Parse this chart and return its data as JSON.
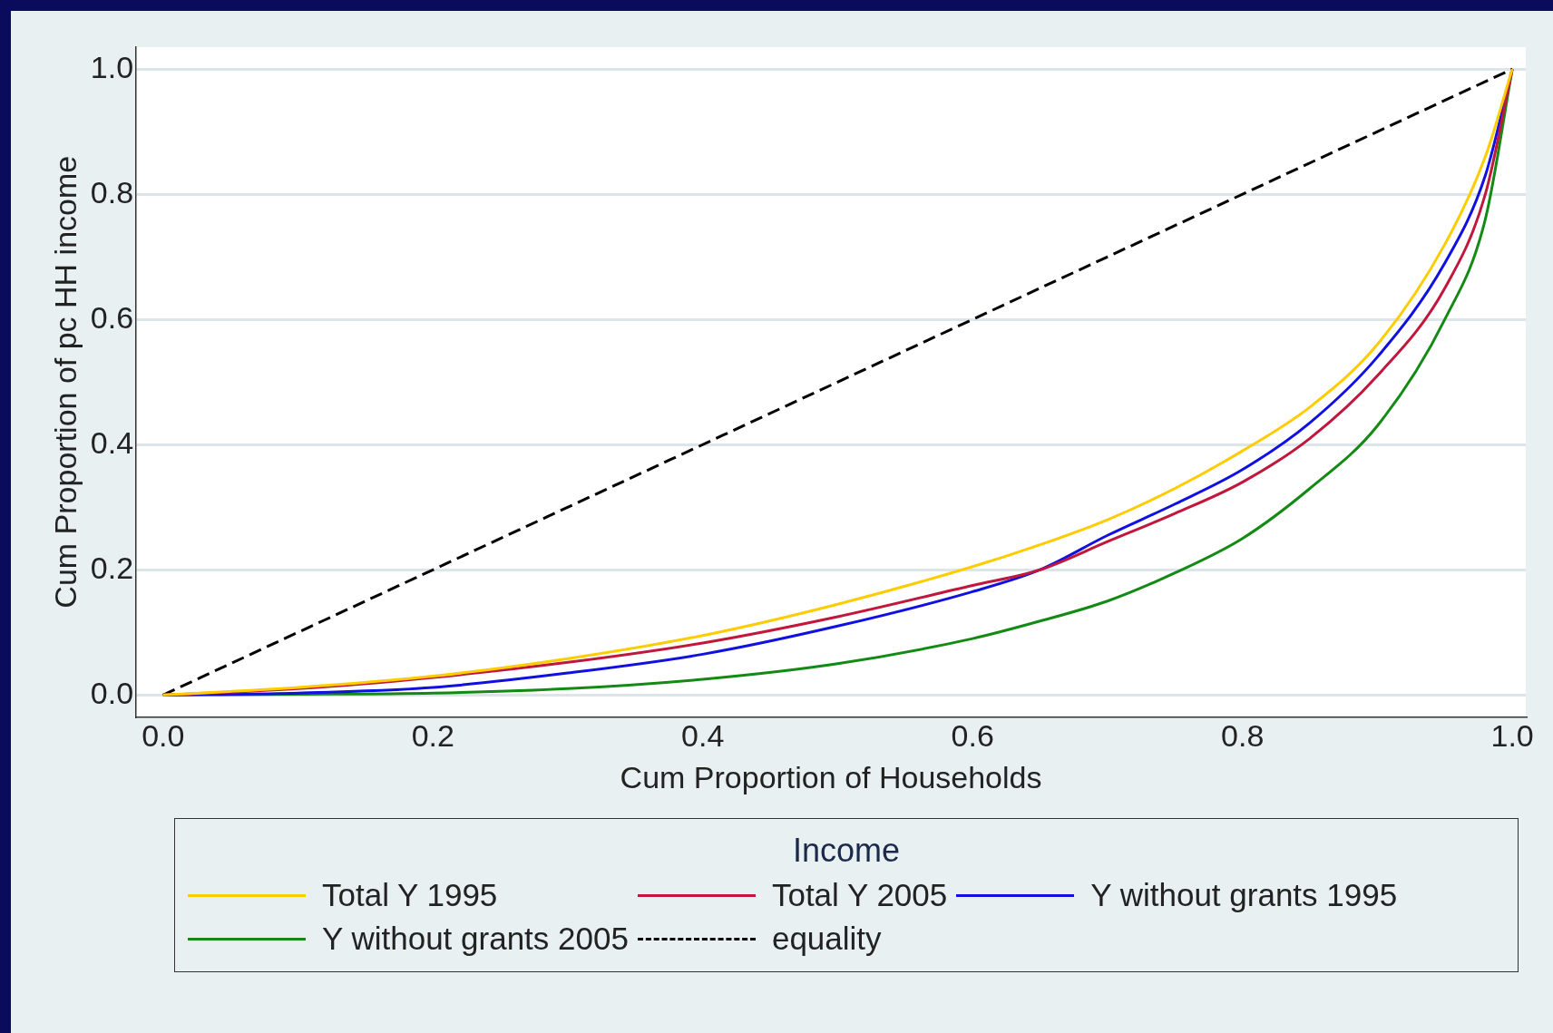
{
  "chart_data": {
    "type": "line",
    "xlabel": "Cum Proportion of Households",
    "ylabel": "Cum Proportion of pc HH income",
    "legend_title": "Income",
    "xlim": [
      -0.02,
      1.01
    ],
    "ylim": [
      -0.035,
      1.035
    ],
    "xticks": [
      {
        "value": 0,
        "label": "0.0"
      },
      0.2,
      0.4,
      0.6,
      0.8,
      {
        "value": 1,
        "label": "1.0"
      }
    ],
    "yticks": [
      {
        "value": 0,
        "label": "0.0"
      },
      0.2,
      0.4,
      0.6,
      0.8,
      {
        "value": 1,
        "label": "1.0"
      }
    ],
    "grid": "y",
    "legend": "bottom",
    "marker": "none",
    "x": [
      0,
      0.1,
      0.2,
      0.3,
      0.4,
      0.5,
      0.6,
      0.65,
      0.7,
      0.75,
      0.8,
      0.85,
      0.9,
      0.95,
      0.98,
      1
    ],
    "series": [
      {
        "name": "Total Y 1995",
        "color": "#ffcc00",
        "values": [
          0,
          0.012,
          0.03,
          0.058,
          0.095,
          0.145,
          0.205,
          0.24,
          0.28,
          0.33,
          0.39,
          0.46,
          0.56,
          0.72,
          0.86,
          1
        ]
      },
      {
        "name": "Total Y 2005",
        "color": "#c0173c",
        "values": [
          0,
          0.01,
          0.028,
          0.052,
          0.083,
          0.125,
          0.175,
          0.2,
          0.245,
          0.29,
          0.34,
          0.41,
          0.51,
          0.65,
          0.8,
          1
        ]
      },
      {
        "name": "Y without grants 1995",
        "color": "#1010e0",
        "values": [
          0,
          0.003,
          0.012,
          0.035,
          0.065,
          0.11,
          0.165,
          0.2,
          0.255,
          0.305,
          0.36,
          0.435,
          0.54,
          0.69,
          0.83,
          1
        ]
      },
      {
        "name": "Y without grants 2005",
        "color": "#138a13",
        "values": [
          0,
          0.001,
          0.003,
          0.01,
          0.025,
          0.05,
          0.09,
          0.118,
          0.15,
          0.195,
          0.25,
          0.33,
          0.43,
          0.6,
          0.76,
          1
        ]
      },
      {
        "name": "equality",
        "color": "#000000",
        "line_style": "dashed",
        "x": [
          0,
          1
        ],
        "values": [
          0,
          1
        ]
      }
    ]
  }
}
